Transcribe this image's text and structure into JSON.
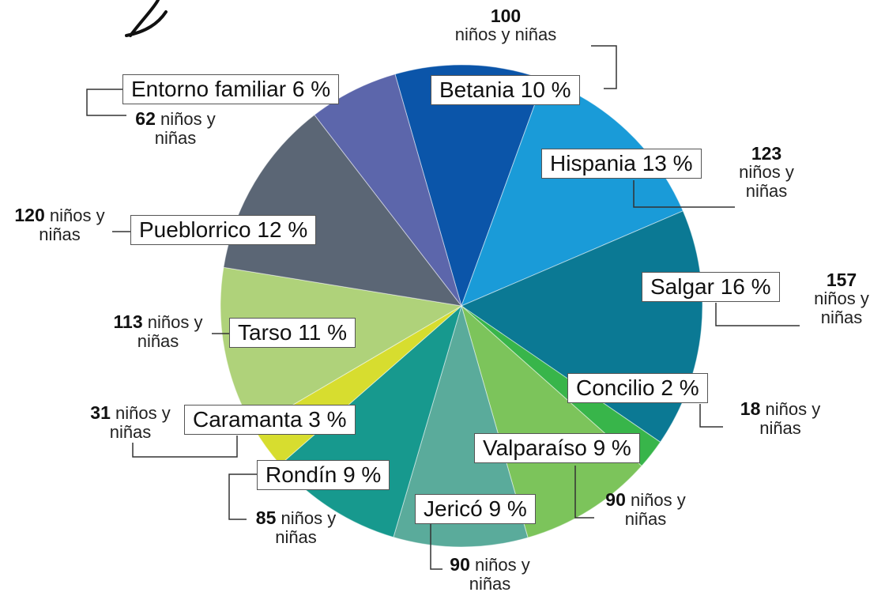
{
  "chart_data": {
    "type": "pie",
    "categories": [
      "Betania",
      "Hispania",
      "Salgar",
      "Concilio",
      "Valparaíso",
      "Jericó",
      "Rondín",
      "Caramanta",
      "Tarso",
      "Pueblorrico",
      "Entorno familiar"
    ],
    "values": [
      10,
      13,
      16,
      2,
      9,
      9,
      9,
      3,
      11,
      12,
      6
    ],
    "value_labels": [
      "Betania 10 %",
      "Hispania 13 %",
      "Salgar 16 %",
      "Concilio 2 %",
      "Valparaíso 9 %",
      "Jericó 9 %",
      "Rondín 9 %",
      "Caramanta 3 %",
      "Tarso 11 %",
      "Pueblorrico 12 %",
      "Entorno familiar 6 %"
    ],
    "counts": [
      100,
      123,
      157,
      18,
      90,
      90,
      85,
      31,
      113,
      120,
      62
    ],
    "count_label": "niños y niñas",
    "colors": [
      "#0b55a9",
      "#1a9bd8",
      "#0b7994",
      "#38b54a",
      "#7cc45b",
      "#5aab9b",
      "#17998e",
      "#d7dd2f",
      "#afd27a",
      "#5b6675",
      "#5c66ab"
    ]
  }
}
